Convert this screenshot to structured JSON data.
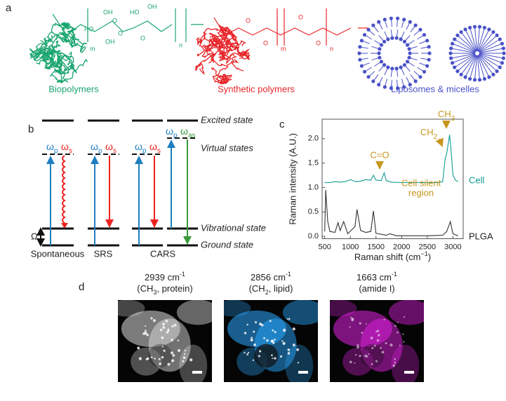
{
  "panel_a": {
    "label": "a",
    "groups": [
      {
        "name": "Biopolymers",
        "color": "#1aa56e",
        "atoms": [
          "OH",
          "HO",
          "OH",
          "O",
          "O",
          "HO",
          "OH",
          "O",
          "m",
          "n"
        ]
      },
      {
        "name": "Synthetic polymers",
        "color": "#e8262a",
        "atoms": [
          "O",
          "O",
          "O",
          "O",
          "m",
          "n"
        ]
      },
      {
        "name": "Liposomes & micelles",
        "color": "#4a52c8",
        "atoms": []
      }
    ]
  },
  "panel_b": {
    "label": "b",
    "states": [
      "Excited state",
      "Virtual states",
      "Vibrational state",
      "Ground state"
    ],
    "methods": [
      "Spontaneous",
      "SRS",
      "CARS"
    ],
    "omega": "Ω",
    "beams": [
      {
        "main": "ω",
        "sub": "p"
      },
      {
        "main": "ω",
        "sub": "s"
      },
      {
        "main": "ω",
        "sub": "as"
      }
    ]
  },
  "panel_c": {
    "label": "c",
    "chart_data": {
      "type": "line",
      "xlabel": {
        "text": "Raman shift (cm",
        "sup": "−1",
        "end": ")"
      },
      "ylabel": "Raman intensity (A.U.)",
      "xlim": [
        450,
        3200
      ],
      "ylim": [
        -0.05,
        2.4
      ],
      "xticks": [
        500,
        1000,
        1500,
        2000,
        2500,
        3000
      ],
      "yticks": [
        {
          "value": 0,
          "label": "0.0"
        },
        {
          "value": 0.5,
          "label": "0.5"
        },
        {
          "value": 1,
          "label": "1.0"
        },
        {
          "value": 1.5,
          "label": "1.5"
        },
        {
          "value": 2,
          "label": "2.0"
        }
      ],
      "series": [
        {
          "name": "Cell",
          "color": "#0f9a94",
          "x": [
            500,
            600,
            700,
            800,
            900,
            1003,
            1100,
            1200,
            1300,
            1400,
            1450,
            1500,
            1600,
            1660,
            1700,
            1800,
            2000,
            2200,
            2400,
            2600,
            2700,
            2800,
            2850,
            2880,
            2935,
            2960,
            3000,
            3050,
            3100
          ],
          "values": [
            1.1,
            1.1,
            1.12,
            1.11,
            1.12,
            1.16,
            1.12,
            1.13,
            1.16,
            1.15,
            1.25,
            1.15,
            1.14,
            1.3,
            1.14,
            1.11,
            1.1,
            1.1,
            1.1,
            1.1,
            1.1,
            1.12,
            1.6,
            1.7,
            2.08,
            1.8,
            1.25,
            1.15,
            1.12
          ]
        },
        {
          "name": "PLGA",
          "color": "#333333",
          "x": [
            500,
            520,
            560,
            600,
            700,
            760,
            800,
            870,
            950,
            1090,
            1130,
            1200,
            1300,
            1400,
            1450,
            1500,
            1700,
            1770,
            1900,
            2200,
            2500,
            2800,
            2880,
            2950,
            3000,
            3100
          ],
          "values": [
            0.1,
            0.95,
            0.3,
            0.1,
            0.08,
            0.28,
            0.12,
            0.3,
            0.05,
            0.2,
            0.55,
            0.12,
            0.08,
            0.1,
            0.52,
            0.06,
            0.02,
            0.05,
            0.01,
            0.01,
            0.01,
            0.02,
            0.1,
            0.3,
            0.05,
            0.01
          ]
        }
      ],
      "annotations": [
        {
          "text": "C=O"
        },
        {
          "lines": [
            "Cell silent",
            "region"
          ]
        },
        {
          "main": "CH",
          "sub": "2"
        },
        {
          "main": "CH",
          "sub": "3"
        }
      ],
      "annotation_color": "#c8961e"
    }
  },
  "panel_d": {
    "label": "d",
    "images": [
      {
        "wavenumber": "2939 cm",
        "sup": "-1",
        "main": "(CH",
        "sub": "3",
        "rest": ", protein)",
        "color": "#dddddd"
      },
      {
        "wavenumber": "2856 cm",
        "sup": "-1",
        "main": "(CH",
        "sub": "2",
        "rest": ", lipid)",
        "color": "#2aa8ff"
      },
      {
        "wavenumber": "1663 cm",
        "sup": "-1",
        "main": "(amide I)",
        "sub": "",
        "rest": "",
        "color": "#e020e0"
      }
    ]
  }
}
